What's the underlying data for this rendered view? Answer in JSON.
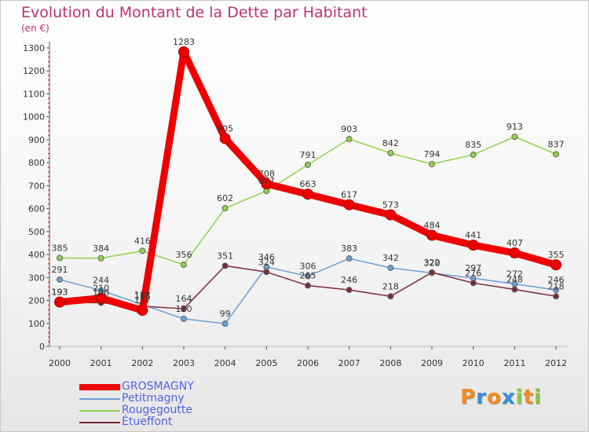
{
  "chart_data": {
    "type": "line",
    "title": "Evolution du Montant de la Dette par Habitant",
    "unit": "(en €)",
    "x": [
      "2000",
      "2001",
      "2002",
      "2003",
      "2004",
      "2005",
      "2006",
      "2007",
      "2008",
      "2009",
      "2010",
      "2011",
      "2012"
    ],
    "ylim": [
      0,
      1300
    ],
    "yticks": [
      0,
      100,
      200,
      300,
      400,
      500,
      600,
      700,
      800,
      900,
      1000,
      1100,
      1200,
      1300
    ],
    "grid": false,
    "legend_position": "bottom-left",
    "series": [
      {
        "name": "GROSMAGNY",
        "color": "#ee0000",
        "values": [
          193,
          210,
          157,
          1283,
          905,
          708,
          663,
          617,
          573,
          484,
          441,
          407,
          355
        ],
        "labels": [
          "193",
          "210",
          "157",
          "1283",
          "905",
          "708",
          "663",
          "617",
          "573",
          "484",
          "441",
          "407",
          "355"
        ]
      },
      {
        "name": "Petitmagny",
        "color": "#6a9ed6",
        "values": [
          291,
          244,
          182,
          120,
          99,
          346,
          306,
          383,
          342,
          320,
          297,
          272,
          246
        ],
        "labels": [
          "291",
          "244",
          "182",
          "120",
          "99",
          "346",
          "306",
          "383",
          "342",
          "320",
          "297",
          "272",
          "246"
        ]
      },
      {
        "name": "Rougegoutte",
        "color": "#8fd34a",
        "values": [
          385,
          384,
          416,
          356,
          602,
          677,
          791,
          903,
          842,
          794,
          835,
          913,
          837
        ],
        "labels": [
          "385",
          "384",
          "416",
          "356",
          "602",
          "677",
          "791",
          "903",
          "842",
          "794",
          "835",
          "913",
          "837"
        ]
      },
      {
        "name": "Étueffont",
        "color": "#7a2a38",
        "values": [
          193,
          190,
          175,
          164,
          351,
          324,
          265,
          246,
          218,
          322,
          276,
          248,
          218
        ],
        "labels": [
          "193",
          "190",
          "175",
          "164",
          "351",
          "324",
          "265",
          "246",
          "218",
          "322",
          "276",
          "248",
          "218"
        ]
      }
    ]
  },
  "logo": {
    "letters": [
      "P",
      "r",
      "o",
      "x",
      "i",
      "t",
      "i"
    ],
    "colors": [
      "#f28c1e",
      "#3a8fd8",
      "#f28c1e",
      "#3a8fd8",
      "#8cc63e",
      "#f28c1e",
      "#8cc63e"
    ]
  }
}
